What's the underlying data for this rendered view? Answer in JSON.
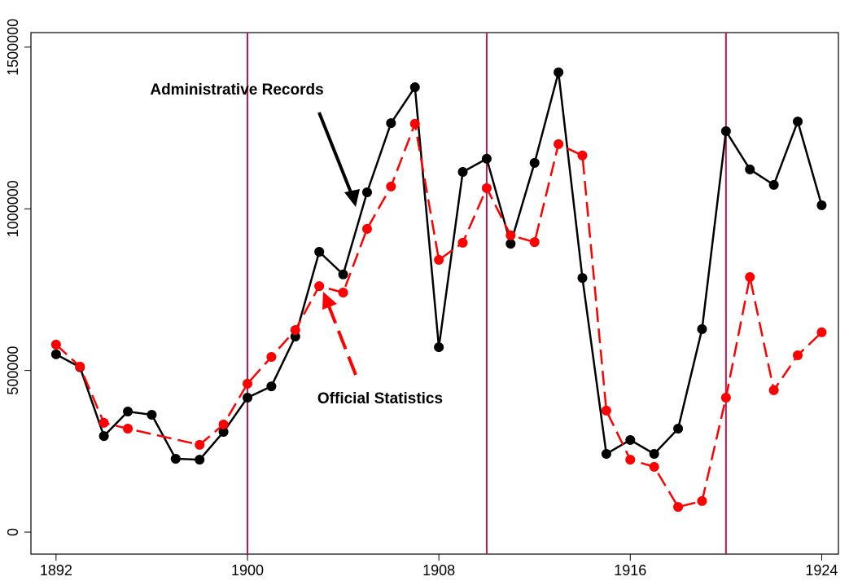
{
  "chart_data": {
    "type": "line",
    "xlim": [
      1890.95,
      1924.7
    ],
    "ylim": [
      -68000,
      1545000
    ],
    "xticks": [
      1892,
      1900,
      1908,
      1916,
      1924
    ],
    "yticks": [
      0,
      500000,
      1000000,
      1500000
    ],
    "vlines": [
      1900,
      1910,
      1920
    ],
    "vline_color": "#c0174a",
    "annotations": [
      "Administrative Records",
      "Official Statistics"
    ],
    "series": [
      {
        "name": "Administrative Records",
        "color": "#000000",
        "dashed": false,
        "x": [
          1892,
          1893,
          1894,
          1895,
          1896,
          1897,
          1898,
          1899,
          1900,
          1901,
          1902,
          1903,
          1904,
          1905,
          1906,
          1907,
          1908,
          1909,
          1910,
          1911,
          1912,
          1913,
          1914,
          1915,
          1916,
          1917,
          1918,
          1919,
          1920,
          1921,
          1922,
          1923,
          1924
        ],
        "values": [
          550000,
          510000,
          297000,
          373000,
          363000,
          227000,
          224000,
          310000,
          416000,
          451000,
          605000,
          867000,
          797000,
          1051000,
          1265000,
          1376000,
          572000,
          1114000,
          1155000,
          892000,
          1142000,
          1422000,
          786000,
          242000,
          285000,
          242000,
          320000,
          628000,
          1240000,
          1122000,
          1074000,
          1270000,
          1011000
        ]
      },
      {
        "name": "Official Statistics",
        "color": "#ff0000",
        "dashed": true,
        "x": [
          1892,
          1893,
          1894,
          1895,
          1898,
          1899,
          1900,
          1901,
          1902,
          1903,
          1904,
          1905,
          1906,
          1907,
          1908,
          1909,
          1910,
          1911,
          1912,
          1913,
          1914,
          1915,
          1916,
          1917,
          1918,
          1919,
          1920,
          1921,
          1922,
          1923,
          1924
        ],
        "values": [
          580000,
          512000,
          338000,
          320000,
          270000,
          333000,
          459000,
          542000,
          625000,
          761000,
          741000,
          938000,
          1069000,
          1263000,
          842000,
          895000,
          1064000,
          918000,
          897000,
          1200000,
          1165000,
          376000,
          224000,
          202000,
          78000,
          96000,
          416000,
          789000,
          439000,
          547000,
          618000
        ]
      }
    ]
  }
}
